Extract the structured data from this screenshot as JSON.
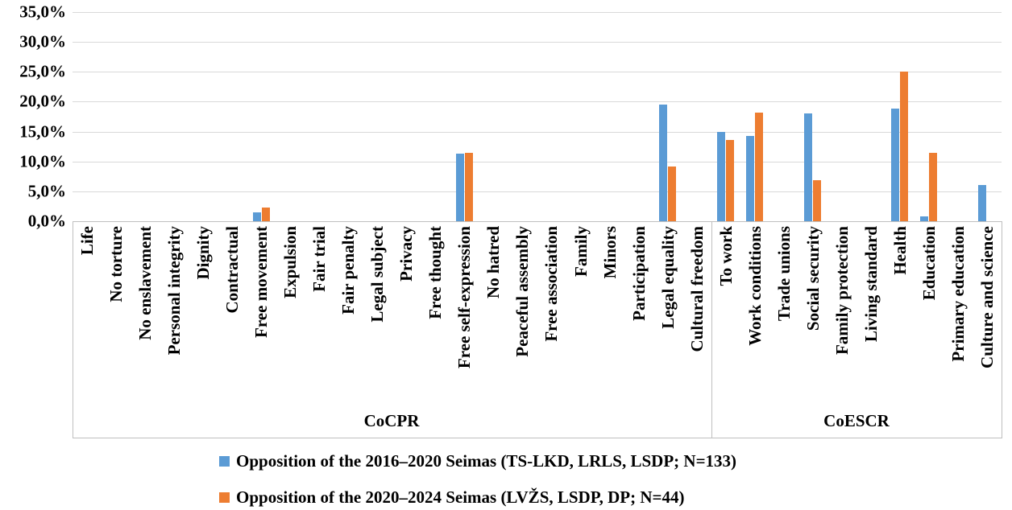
{
  "chart_data": {
    "type": "bar",
    "title": "",
    "y_axis": {
      "tick_labels": [
        "35,0%",
        "30,0%",
        "25,0%",
        "20,0%",
        "15,0%",
        "10,0%",
        "5,0%",
        "0,0%"
      ],
      "min": 0,
      "max": 35,
      "step": 5,
      "unit": "%",
      "decimal_separator": ","
    },
    "groups": [
      {
        "label": "CoCPR",
        "categories_count": 22
      },
      {
        "label": "CoESCR",
        "categories_count": 10
      }
    ],
    "categories": [
      "Life",
      "No torture",
      "No enslavement",
      "Personal integrity",
      "Dignity",
      "Contractual",
      "Free movement",
      "Expulsion",
      "Fair trial",
      "Fair penalty",
      "Legal subject",
      "Privacy",
      "Free thought",
      "Free self-expression",
      "No hatred",
      "Peaceful assembly",
      "Free association",
      "Family",
      "Minors",
      "Participation",
      "Legal equality",
      "Cultural freedom",
      "To work",
      "Work conditions",
      "Trade unions",
      "Social security",
      "Family protection",
      "Living standard",
      "Health",
      "Education",
      "Primary education",
      "Culture and science"
    ],
    "series": [
      {
        "name": "Opposition of the 2016–2020 Seimas (TS-LKD, LRLS, LSDP; N=133)",
        "color": "#5B9BD5",
        "values": [
          0,
          0,
          0,
          0,
          0,
          0,
          1.5,
          0,
          0,
          0,
          0,
          0,
          0,
          11.3,
          0,
          0,
          0,
          0,
          0,
          0,
          19.5,
          0,
          15,
          14.3,
          0,
          18,
          0,
          0,
          18.8,
          0.8,
          0,
          6
        ]
      },
      {
        "name": "Opposition of the 2020–2024 Seimas (LVŽS, LSDP, DP; N=44)",
        "color": "#ED7D31",
        "values": [
          0,
          0,
          0,
          0,
          0,
          0,
          2.3,
          0,
          0,
          0,
          0,
          0,
          0,
          11.4,
          0,
          0,
          0,
          0,
          0,
          0,
          9.1,
          0,
          13.6,
          18.2,
          0,
          6.8,
          0,
          0,
          25,
          11.4,
          0,
          0
        ]
      }
    ],
    "legend_position": "bottom-left",
    "grid": true,
    "colors": {
      "gridline": "#D9D9D9",
      "frame": "#BFBFBF",
      "text": "#000000",
      "background": "#FFFFFF"
    }
  }
}
